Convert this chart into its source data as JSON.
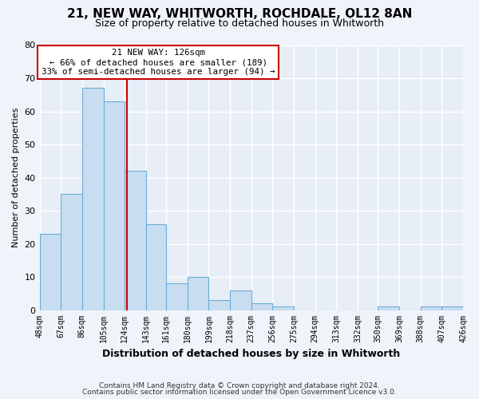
{
  "title": "21, NEW WAY, WHITWORTH, ROCHDALE, OL12 8AN",
  "subtitle": "Size of property relative to detached houses in Whitworth",
  "xlabel": "Distribution of detached houses by size in Whitworth",
  "ylabel": "Number of detached properties",
  "bin_edges": [
    48,
    67,
    86,
    105,
    124,
    143,
    161,
    180,
    199,
    218,
    237,
    256,
    275,
    294,
    313,
    332,
    350,
    369,
    388,
    407,
    426
  ],
  "bar_heights": [
    23,
    35,
    67,
    63,
    42,
    26,
    8,
    10,
    3,
    6,
    2,
    1,
    0,
    0,
    0,
    0,
    1,
    0,
    1,
    1
  ],
  "bar_color": "#c8ddf0",
  "bar_edge_color": "#6aaed6",
  "property_size": 126,
  "vline_color": "#cc0000",
  "annotation_title": "21 NEW WAY: 126sqm",
  "annotation_line1": "← 66% of detached houses are smaller (189)",
  "annotation_line2": "33% of semi-detached houses are larger (94) →",
  "annotation_box_color": "#ffffff",
  "annotation_box_edge": "#cc0000",
  "ylim": [
    0,
    80
  ],
  "yticks": [
    0,
    10,
    20,
    30,
    40,
    50,
    60,
    70,
    80
  ],
  "tick_labels": [
    "48sqm",
    "67sqm",
    "86sqm",
    "105sqm",
    "124sqm",
    "143sqm",
    "161sqm",
    "180sqm",
    "199sqm",
    "218sqm",
    "237sqm",
    "256sqm",
    "275sqm",
    "294sqm",
    "313sqm",
    "332sqm",
    "350sqm",
    "369sqm",
    "388sqm",
    "407sqm",
    "426sqm"
  ],
  "footer_line1": "Contains HM Land Registry data © Crown copyright and database right 2024.",
  "footer_line2": "Contains public sector information licensed under the Open Government Licence v3.0.",
  "fig_bg": "#f0f4fa",
  "plot_bg": "#e8eef8",
  "grid_color": "#ffffff",
  "title_fontsize": 11,
  "subtitle_fontsize": 9
}
